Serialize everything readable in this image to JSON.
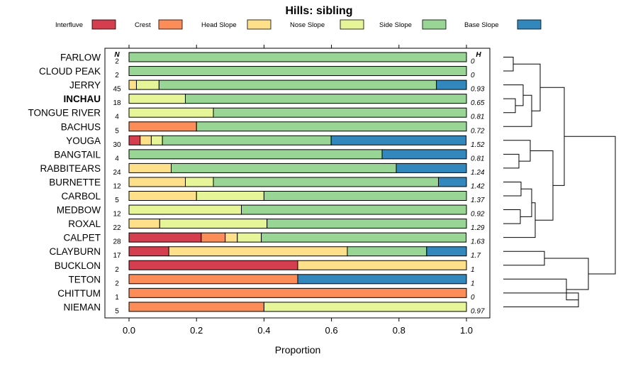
{
  "chart_data": {
    "type": "bar",
    "stacked": "horizontal-proportion",
    "title": "Hills: sibling",
    "xlabel": "Proportion",
    "ylabel": "",
    "xlim": [
      0,
      1
    ],
    "x_ticks": [
      0.0,
      0.2,
      0.4,
      0.6,
      0.8,
      1.0
    ],
    "x_tick_labels": [
      "0.0",
      "0.2",
      "0.4",
      "0.6",
      "0.8",
      "1.0"
    ],
    "n_header": "N",
    "h_header": "H",
    "legend_position": "top",
    "legend": [
      {
        "name": "Interfluve",
        "color": "#d53e4f"
      },
      {
        "name": "Crest",
        "color": "#fc8d59"
      },
      {
        "name": "Head Slope",
        "color": "#fee08b"
      },
      {
        "name": "Nose Slope",
        "color": "#e6f598"
      },
      {
        "name": "Side Slope",
        "color": "#99d594"
      },
      {
        "name": "Base Slope",
        "color": "#3288bd"
      }
    ],
    "rows": [
      {
        "label": "FARLOW",
        "bold": false,
        "n": "2",
        "h": "0",
        "values": [
          0,
          0,
          0,
          0,
          1.0,
          0
        ]
      },
      {
        "label": "CLOUD PEAK",
        "bold": false,
        "n": "2",
        "h": "0",
        "values": [
          0,
          0,
          0,
          0,
          1.0,
          0
        ]
      },
      {
        "label": "JERRY",
        "bold": false,
        "n": "45",
        "h": "0.93",
        "values": [
          0,
          0,
          0.022,
          0.067,
          0.822,
          0.089
        ]
      },
      {
        "label": "INCHAU",
        "bold": true,
        "n": "18",
        "h": "0.65",
        "values": [
          0,
          0,
          0,
          0.167,
          0.833,
          0
        ]
      },
      {
        "label": "TONGUE RIVER",
        "bold": false,
        "n": "4",
        "h": "0.81",
        "values": [
          0,
          0,
          0,
          0.25,
          0.75,
          0
        ]
      },
      {
        "label": "BACHUS",
        "bold": false,
        "n": "5",
        "h": "0.72",
        "values": [
          0,
          0.2,
          0,
          0,
          0.8,
          0
        ]
      },
      {
        "label": "YOUGA",
        "bold": false,
        "n": "30",
        "h": "1.52",
        "values": [
          0.033,
          0,
          0.033,
          0.033,
          0.5,
          0.4
        ]
      },
      {
        "label": "BANGTAIL",
        "bold": false,
        "n": "4",
        "h": "0.81",
        "values": [
          0,
          0,
          0,
          0,
          0.75,
          0.25
        ]
      },
      {
        "label": "RABBITEARS",
        "bold": false,
        "n": "24",
        "h": "1.24",
        "values": [
          0,
          0,
          0.125,
          0,
          0.667,
          0.208
        ]
      },
      {
        "label": "BURNETTE",
        "bold": false,
        "n": "12",
        "h": "1.42",
        "values": [
          0,
          0,
          0.167,
          0.083,
          0.667,
          0.083
        ]
      },
      {
        "label": "CARBOL",
        "bold": false,
        "n": "5",
        "h": "1.37",
        "values": [
          0,
          0,
          0.2,
          0.2,
          0.6,
          0
        ]
      },
      {
        "label": "MEDBOW",
        "bold": false,
        "n": "12",
        "h": "0.92",
        "values": [
          0,
          0,
          0,
          0.333,
          0.667,
          0
        ]
      },
      {
        "label": "ROXAL",
        "bold": false,
        "n": "22",
        "h": "1.29",
        "values": [
          0,
          0,
          0.091,
          0.318,
          0.591,
          0
        ]
      },
      {
        "label": "CALPET",
        "bold": false,
        "n": "28",
        "h": "1.63",
        "values": [
          0.214,
          0.071,
          0.036,
          0.071,
          0.607,
          0
        ]
      },
      {
        "label": "CLAYBURN",
        "bold": false,
        "n": "17",
        "h": "1.7",
        "values": [
          0.118,
          0,
          0.529,
          0,
          0.235,
          0.118
        ]
      },
      {
        "label": "BUCKLON",
        "bold": false,
        "n": "2",
        "h": "1",
        "values": [
          0.5,
          0,
          0.5,
          0,
          0,
          0
        ]
      },
      {
        "label": "TETON",
        "bold": false,
        "n": "2",
        "h": "1",
        "values": [
          0,
          0.5,
          0,
          0,
          0,
          0.5
        ]
      },
      {
        "label": "CHITTUM",
        "bold": false,
        "n": "1",
        "h": "0",
        "values": [
          0,
          1.0,
          0,
          0,
          0,
          0
        ]
      },
      {
        "label": "NIEMAN",
        "bold": false,
        "n": "5",
        "h": "0.97",
        "values": [
          0,
          0.4,
          0,
          0.6,
          0,
          0
        ]
      }
    ],
    "dendrogram": "hierarchical clustering of rows (shown at right)"
  }
}
